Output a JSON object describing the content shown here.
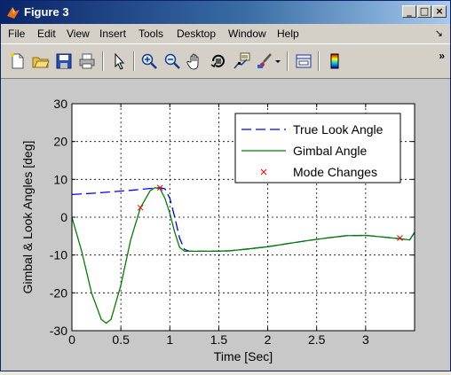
{
  "window": {
    "title": "Figure 3"
  },
  "title_buttons": {
    "minimize": "_",
    "maximize": "□",
    "close": "×"
  },
  "menu": [
    {
      "label": "File"
    },
    {
      "label": "Edit"
    },
    {
      "label": "View"
    },
    {
      "label": "Insert"
    },
    {
      "label": "Tools"
    },
    {
      "label": "Desktop"
    },
    {
      "label": "Window"
    },
    {
      "label": "Help"
    }
  ],
  "menu_more": "↘",
  "toolbar": {
    "buttons": [
      "new-file-icon",
      "open-folder-icon",
      "save-icon",
      "print-icon",
      "pointer-icon",
      "zoom-in-icon",
      "zoom-out-icon",
      "pan-hand-icon",
      "rotate-3d-icon",
      "data-cursor-icon",
      "brush-icon",
      "dropdown-arrow-icon",
      "link-plot-icon",
      "colorbar-icon"
    ],
    "more": "»"
  },
  "colors": {
    "true_look": "#0000ff",
    "gimbal": "#008000",
    "mode": "#ff0000",
    "figure_bg": "#c8c8c8",
    "axes_bg": "#ffffff"
  },
  "chart_data": {
    "type": "line",
    "title": "",
    "xlabel": "Time [Sec]",
    "ylabel": "Gimbal & Look Angles [deg]",
    "xlim": [
      0,
      3.5
    ],
    "ylim": [
      -30,
      30
    ],
    "xticks": [
      0,
      0.5,
      1,
      1.5,
      2,
      2.5,
      3
    ],
    "xtick_labels": [
      "0",
      "0.5",
      "1",
      "1.5",
      "2",
      "2.5",
      "3"
    ],
    "yticks": [
      -30,
      -20,
      -10,
      0,
      10,
      20,
      30
    ],
    "ytick_labels": [
      "-30",
      "-20",
      "-10",
      "0",
      "10",
      "20",
      "30"
    ],
    "grid": true,
    "legend_position": "top-right",
    "legend": [
      "True Look Angle",
      "Gimbal Angle",
      "Mode Changes"
    ],
    "series": [
      {
        "name": "True Look Angle",
        "style": "dashed",
        "x": [
          0,
          0.2,
          0.4,
          0.6,
          0.8,
          0.9,
          0.95,
          1.0,
          1.05,
          1.1,
          1.15,
          1.2,
          1.4,
          1.6,
          1.8,
          2.0,
          2.2,
          2.4,
          2.6,
          2.8,
          3.0,
          3.2,
          3.35,
          3.45,
          3.5
        ],
        "y": [
          6,
          6.3,
          6.7,
          7.1,
          7.6,
          7.8,
          7.5,
          5,
          0,
          -5.5,
          -8.5,
          -9,
          -9,
          -8.9,
          -8.4,
          -7.8,
          -7,
          -6.2,
          -5.5,
          -4.9,
          -4.8,
          -5.3,
          -5.7,
          -6,
          -4
        ]
      },
      {
        "name": "Gimbal Angle",
        "style": "solid",
        "x": [
          0,
          0.1,
          0.2,
          0.3,
          0.35,
          0.4,
          0.5,
          0.6,
          0.7,
          0.8,
          0.85,
          0.9,
          0.95,
          1.0,
          1.05,
          1.1,
          1.15,
          1.2,
          1.4,
          1.6,
          1.8,
          2.0,
          2.2,
          2.4,
          2.6,
          2.8,
          3.0,
          3.2,
          3.35,
          3.45,
          3.5
        ],
        "y": [
          0,
          -9,
          -20,
          -27,
          -28,
          -27,
          -18,
          -6,
          2.5,
          7,
          7.8,
          7.5,
          5,
          1,
          -4,
          -8,
          -9,
          -9,
          -9,
          -8.9,
          -8.4,
          -7.8,
          -7,
          -6.2,
          -5.5,
          -4.9,
          -4.8,
          -5.3,
          -5.7,
          -6,
          -4
        ]
      },
      {
        "name": "Mode Changes",
        "style": "markers",
        "x": [
          0.7,
          0.9,
          3.35
        ],
        "y": [
          2.5,
          7.8,
          -5.5
        ]
      }
    ]
  }
}
